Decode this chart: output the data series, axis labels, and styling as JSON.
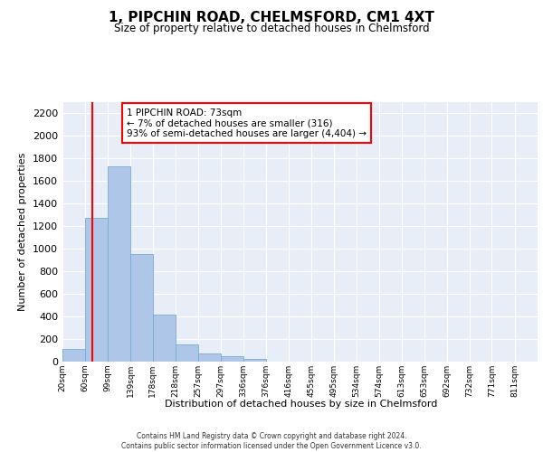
{
  "title": "1, PIPCHIN ROAD, CHELMSFORD, CM1 4XT",
  "subtitle": "Size of property relative to detached houses in Chelmsford",
  "xlabel": "Distribution of detached houses by size in Chelmsford",
  "ylabel": "Number of detached properties",
  "bar_color": "#aec6e8",
  "bar_edge_color": "#7aaad0",
  "background_color": "#e8eef8",
  "grid_color": "#ffffff",
  "annotation_text": "1 PIPCHIN ROAD: 73sqm\n← 7% of detached houses are smaller (316)\n93% of semi-detached houses are larger (4,404) →",
  "red_line_x": 73,
  "categories": [
    "20sqm",
    "60sqm",
    "99sqm",
    "139sqm",
    "178sqm",
    "218sqm",
    "257sqm",
    "297sqm",
    "336sqm",
    "376sqm",
    "416sqm",
    "455sqm",
    "495sqm",
    "534sqm",
    "574sqm",
    "613sqm",
    "653sqm",
    "692sqm",
    "732sqm",
    "771sqm",
    "811sqm"
  ],
  "bin_lefts": [
    20,
    60,
    99,
    139,
    178,
    218,
    257,
    297,
    336,
    376,
    416,
    455,
    495,
    534,
    574,
    613,
    653,
    692,
    732,
    771,
    811
  ],
  "bin_rights": [
    60,
    99,
    139,
    178,
    218,
    257,
    297,
    336,
    376,
    416,
    455,
    495,
    534,
    574,
    613,
    653,
    692,
    732,
    771,
    811,
    851
  ],
  "values": [
    110,
    1270,
    1730,
    950,
    415,
    152,
    75,
    45,
    27,
    0,
    0,
    0,
    0,
    0,
    0,
    0,
    0,
    0,
    0,
    0,
    0
  ],
  "ylim": [
    0,
    2300
  ],
  "yticks": [
    0,
    200,
    400,
    600,
    800,
    1000,
    1200,
    1400,
    1600,
    1800,
    2000,
    2200
  ],
  "footer_line1": "Contains HM Land Registry data © Crown copyright and database right 2024.",
  "footer_line2": "Contains public sector information licensed under the Open Government Licence v3.0."
}
